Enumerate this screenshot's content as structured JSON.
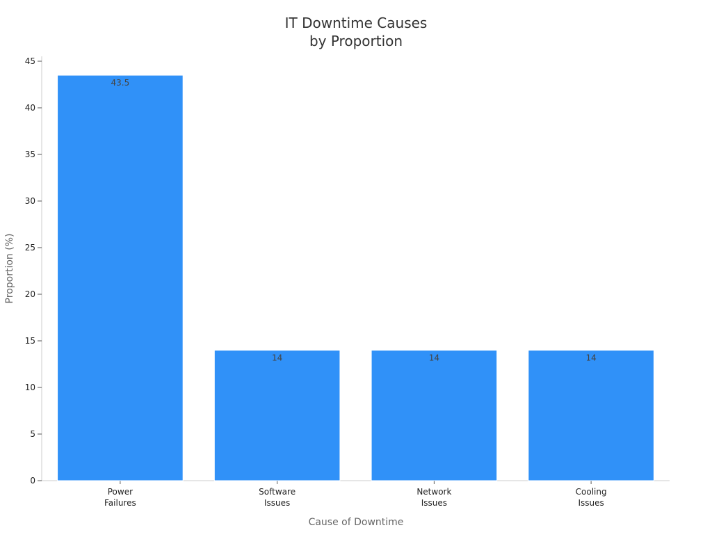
{
  "colors": {
    "bar": "#3091f8",
    "bar_edge": "#ffffff",
    "axis": "#cccccc",
    "tick": "#555555"
  },
  "chart_data": {
    "type": "bar",
    "title": "IT Downtime Causes\nby Proportion",
    "xlabel": "Cause of Downtime",
    "ylabel": "Proportion (%)",
    "categories": [
      "Power\nFailures",
      "Software\nIssues",
      "Network\nIssues",
      "Cooling\nIssues"
    ],
    "values": [
      43.5,
      14,
      14,
      14
    ],
    "data_labels": [
      "43.5",
      "14",
      "14",
      "14"
    ],
    "ylim": [
      0,
      45
    ],
    "yticks": [
      0,
      5,
      10,
      15,
      20,
      25,
      30,
      35,
      40,
      45
    ],
    "grid": false,
    "legend": "none"
  }
}
